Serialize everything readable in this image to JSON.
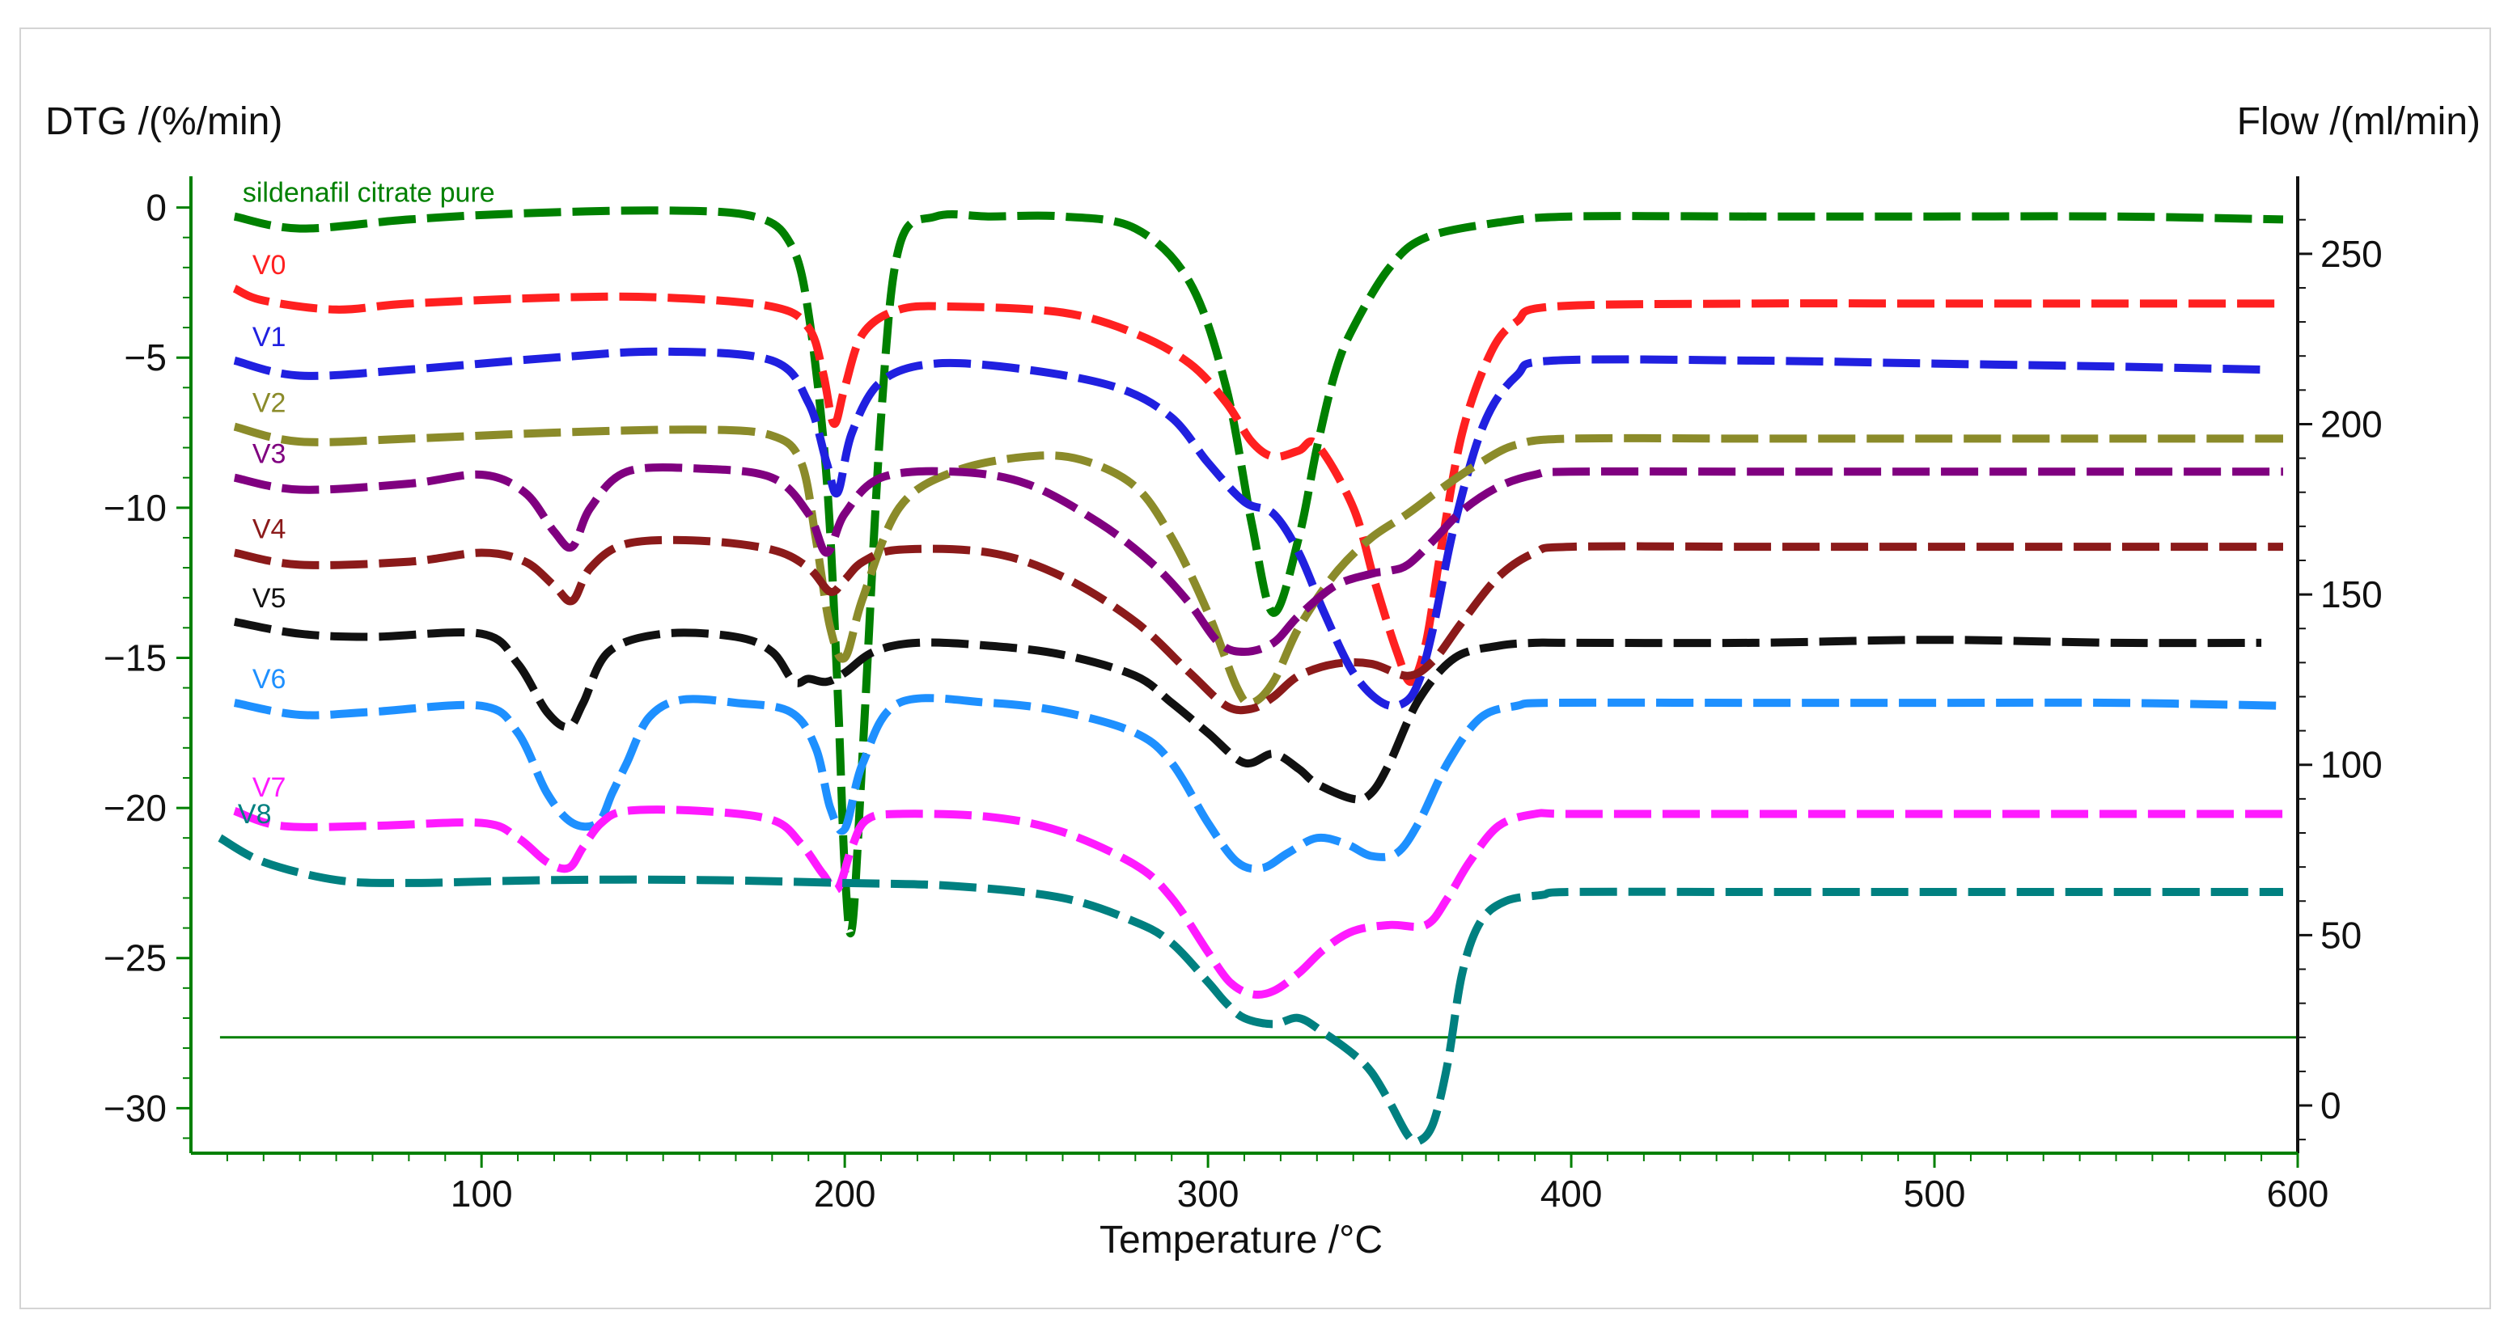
{
  "chart_data": {
    "type": "line",
    "title": "",
    "xlabel": "Temperature /°C",
    "ylabel_left": "DTG /(%/min)",
    "ylabel_right": "Flow /(ml/min)",
    "xlim": [
      20,
      600
    ],
    "ylim_left": [
      -31.5,
      0.5
    ],
    "ylim_right": [
      -14,
      268
    ],
    "x_ticks": [
      100,
      200,
      300,
      400,
      500,
      600
    ],
    "y_ticks_left": [
      0,
      -5,
      -10,
      -15,
      -20,
      -25,
      -30
    ],
    "y_ticks_right": [
      0,
      50,
      100,
      150,
      200,
      250
    ],
    "grid": false,
    "colors": {
      "axes": "#008000",
      "flow_line": "#008000"
    },
    "flow": {
      "name": "Flow",
      "axis": "right",
      "value": 20,
      "x_range": [
        28,
        600
      ]
    },
    "series": [
      {
        "name": "sildenafil citrate pure",
        "color": "#008000",
        "x": [
          32,
          50,
          80,
          110,
          150,
          175,
          185,
          190,
          195,
          198,
          200,
          202,
          205,
          210,
          215,
          225,
          240,
          260,
          280,
          295,
          305,
          312,
          318,
          325,
          330,
          335,
          340,
          350,
          360,
          380,
          400,
          450,
          500,
          550,
          596
        ],
        "y": [
          -0.3,
          -0.7,
          -0.4,
          -0.2,
          -0.1,
          -0.3,
          -1.2,
          -3.5,
          -9,
          -16,
          -22,
          -24,
          -18,
          -7,
          -1.3,
          -0.3,
          -0.3,
          -0.3,
          -0.7,
          -2.5,
          -6,
          -10.5,
          -13.5,
          -11,
          -8,
          -5.5,
          -4,
          -2,
          -1,
          -0.5,
          -0.3,
          -0.3,
          -0.3,
          -0.3,
          -0.4
        ]
      },
      {
        "name": "V0",
        "color": "#ff2020",
        "x": [
          32,
          40,
          60,
          80,
          120,
          150,
          180,
          190,
          194,
          197,
          200,
          205,
          215,
          230,
          260,
          280,
          295,
          305,
          312,
          318,
          325,
          330,
          340,
          346,
          352,
          356,
          360,
          364,
          370,
          378,
          385,
          395,
          450,
          500,
          550,
          596
        ],
        "y": [
          -2.7,
          -3.1,
          -3.4,
          -3.2,
          -3.0,
          -3.0,
          -3.3,
          -4.0,
          -5.5,
          -7.2,
          -6.0,
          -4.2,
          -3.4,
          -3.3,
          -3.5,
          -4.2,
          -5.2,
          -6.5,
          -7.8,
          -8.3,
          -8.1,
          -7.9,
          -10,
          -12.5,
          -14.8,
          -15.8,
          -14.5,
          -11.5,
          -7.5,
          -4.8,
          -3.8,
          -3.3,
          -3.2,
          -3.2,
          -3.2,
          -3.2
        ]
      },
      {
        "name": "V1",
        "color": "#2020e0",
        "x": [
          32,
          50,
          80,
          120,
          150,
          180,
          190,
          195,
          198,
          202,
          210,
          225,
          250,
          275,
          290,
          300,
          310,
          318,
          325,
          332,
          340,
          348,
          354,
          358,
          362,
          368,
          376,
          385,
          395,
          450,
          500,
          550,
          590
        ],
        "y": [
          -5.1,
          -5.6,
          -5.4,
          -5.0,
          -4.8,
          -5.1,
          -6.5,
          -8.5,
          -9.5,
          -7.5,
          -5.8,
          -5.2,
          -5.4,
          -6.0,
          -7.0,
          -8.5,
          -9.8,
          -10.2,
          -11.5,
          -13.5,
          -15.5,
          -16.5,
          -16.5,
          -15.8,
          -14.0,
          -10.5,
          -7.2,
          -5.6,
          -5.1,
          -5.1,
          -5.2,
          -5.3,
          -5.4
        ]
      },
      {
        "name": "V2",
        "color": "#8b8b2a",
        "x": [
          32,
          50,
          80,
          120,
          160,
          180,
          188,
          192,
          196,
          200,
          205,
          215,
          230,
          250,
          265,
          280,
          290,
          300,
          308,
          312,
          318,
          325,
          335,
          345,
          355,
          365,
          375,
          385,
          400,
          450,
          500,
          550,
          596
        ],
        "y": [
          -7.3,
          -7.8,
          -7.7,
          -7.5,
          -7.4,
          -7.6,
          -8.5,
          -11,
          -14,
          -15,
          -13,
          -10,
          -8.8,
          -8.3,
          -8.4,
          -9.3,
          -11,
          -13.5,
          -16,
          -16.5,
          -15.8,
          -14,
          -12.2,
          -11.0,
          -10.2,
          -9.3,
          -8.5,
          -7.9,
          -7.7,
          -7.7,
          -7.7,
          -7.7,
          -7.7
        ]
      },
      {
        "name": "V3",
        "color": "#800080",
        "x": [
          32,
          50,
          80,
          100,
          112,
          120,
          125,
          130,
          140,
          160,
          180,
          190,
          195,
          200,
          210,
          230,
          250,
          270,
          285,
          295,
          303,
          310,
          318,
          325,
          335,
          345,
          350,
          355,
          362,
          370,
          380,
          390,
          400,
          450,
          500,
          550,
          596
        ],
        "y": [
          -9.0,
          -9.4,
          -9.2,
          -8.9,
          -9.5,
          -10.8,
          -11.3,
          -10,
          -8.8,
          -8.7,
          -9.0,
          -10.2,
          -11.5,
          -10.2,
          -9.0,
          -8.8,
          -9.2,
          -10.5,
          -11.9,
          -13.2,
          -14.5,
          -14.8,
          -14.5,
          -13.6,
          -12.6,
          -12.2,
          -12.1,
          -11.9,
          -11.1,
          -10.1,
          -9.3,
          -8.9,
          -8.8,
          -8.8,
          -8.8,
          -8.8,
          -8.8
        ]
      },
      {
        "name": "V4",
        "color": "#8b1a1a",
        "x": [
          32,
          50,
          80,
          100,
          112,
          120,
          125,
          130,
          140,
          160,
          180,
          190,
          196,
          200,
          205,
          215,
          240,
          260,
          280,
          295,
          305,
          312,
          318,
          325,
          335,
          345,
          355,
          362,
          370,
          380,
          390,
          400,
          450,
          500,
          550,
          596
        ],
        "y": [
          -11.5,
          -11.9,
          -11.8,
          -11.5,
          -11.8,
          -12.6,
          -13.1,
          -12.0,
          -11.2,
          -11.1,
          -11.4,
          -12.0,
          -12.8,
          -12.4,
          -11.8,
          -11.4,
          -11.5,
          -12.3,
          -13.8,
          -15.5,
          -16.6,
          -16.7,
          -16.3,
          -15.6,
          -15.2,
          -15.2,
          -15.6,
          -15.1,
          -13.8,
          -12.3,
          -11.5,
          -11.3,
          -11.3,
          -11.3,
          -11.3,
          -11.3
        ]
      },
      {
        "name": "V5",
        "color": "#111111",
        "x": [
          32,
          50,
          70,
          100,
          110,
          118,
          124,
          128,
          135,
          150,
          170,
          180,
          186,
          190,
          195,
          200,
          208,
          220,
          240,
          260,
          280,
          290,
          300,
          310,
          318,
          325,
          330,
          340,
          345,
          350,
          358,
          368,
          380,
          390,
          400,
          450,
          500,
          550,
          590
        ],
        "y": [
          -13.8,
          -14.2,
          -14.3,
          -14.2,
          -15.2,
          -16.8,
          -17.3,
          -16.5,
          -14.8,
          -14.2,
          -14.3,
          -14.8,
          -15.8,
          -15.7,
          -15.8,
          -15.5,
          -14.8,
          -14.5,
          -14.6,
          -14.9,
          -15.6,
          -16.5,
          -17.5,
          -18.5,
          -18.2,
          -18.7,
          -19.2,
          -19.7,
          -19.5,
          -18.5,
          -16.4,
          -15.0,
          -14.6,
          -14.5,
          -14.5,
          -14.5,
          -14.4,
          -14.5,
          -14.5
        ]
      },
      {
        "name": "V6",
        "color": "#1e90ff",
        "x": [
          32,
          50,
          70,
          100,
          110,
          118,
          125,
          132,
          136,
          140,
          146,
          155,
          170,
          185,
          192,
          196,
          200,
          205,
          215,
          240,
          260,
          280,
          290,
          300,
          308,
          315,
          322,
          330,
          338,
          345,
          352,
          358,
          366,
          375,
          385,
          395,
          450,
          500,
          550,
          596
        ],
        "y": [
          -16.5,
          -16.9,
          -16.8,
          -16.6,
          -17.5,
          -19.5,
          -20.5,
          -20.5,
          -19.5,
          -18.5,
          -17.0,
          -16.4,
          -16.5,
          -16.8,
          -18.0,
          -20.0,
          -20.7,
          -18.5,
          -16.5,
          -16.5,
          -16.8,
          -17.5,
          -18.5,
          -20.5,
          -21.8,
          -22.0,
          -21.5,
          -21.0,
          -21.2,
          -21.6,
          -21.5,
          -20.5,
          -18.5,
          -17.0,
          -16.6,
          -16.5,
          -16.5,
          -16.5,
          -16.5,
          -16.6
        ]
      },
      {
        "name": "V7",
        "color": "#ff1aff",
        "x": [
          32,
          45,
          70,
          100,
          110,
          118,
          124,
          128,
          133,
          140,
          160,
          180,
          188,
          194,
          198,
          202,
          206,
          215,
          240,
          260,
          280,
          290,
          300,
          306,
          312,
          318,
          325,
          332,
          340,
          350,
          360,
          366,
          372,
          380,
          390,
          400,
          450,
          500,
          550,
          596
        ],
        "y": [
          -20.1,
          -20.6,
          -20.6,
          -20.5,
          -21.0,
          -21.8,
          -22.0,
          -21.3,
          -20.5,
          -20.1,
          -20.1,
          -20.4,
          -21.2,
          -22.2,
          -22.7,
          -21.3,
          -20.4,
          -20.2,
          -20.3,
          -20.8,
          -21.9,
          -23.0,
          -24.8,
          -25.8,
          -26.2,
          -26.1,
          -25.5,
          -24.7,
          -24.1,
          -23.9,
          -23.9,
          -23.0,
          -21.8,
          -20.6,
          -20.2,
          -20.2,
          -20.2,
          -20.2,
          -20.2,
          -20.2
        ]
      },
      {
        "name": "V8",
        "color": "#008080",
        "x": [
          28,
          40,
          60,
          80,
          120,
          160,
          200,
          230,
          260,
          280,
          290,
          300,
          305,
          310,
          318,
          325,
          332,
          340,
          345,
          350,
          355,
          358,
          362,
          366,
          370,
          375,
          382,
          392,
          400,
          450,
          500,
          550,
          596
        ],
        "y": [
          -21.0,
          -21.8,
          -22.4,
          -22.5,
          -22.4,
          -22.4,
          -22.5,
          -22.6,
          -23.0,
          -23.8,
          -24.5,
          -25.8,
          -26.5,
          -27.0,
          -27.2,
          -27.0,
          -27.5,
          -28.2,
          -28.8,
          -29.8,
          -30.9,
          -31.1,
          -30.5,
          -28.5,
          -25.5,
          -23.8,
          -23.1,
          -22.9,
          -22.8,
          -22.8,
          -22.8,
          -22.8,
          -22.8
        ]
      }
    ]
  }
}
